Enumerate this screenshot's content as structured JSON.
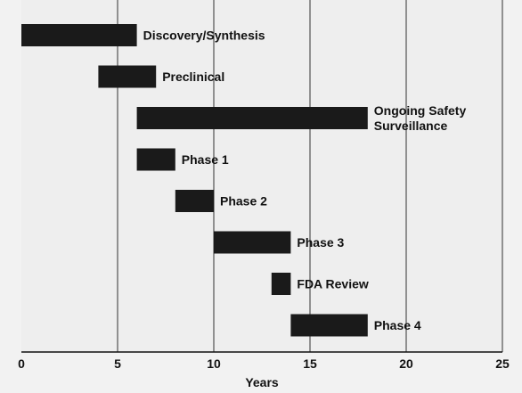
{
  "chart_data": {
    "type": "bar",
    "orientation": "horizontal-gantt",
    "xlabel": "Years",
    "ylabel": "",
    "xlim": [
      0,
      25
    ],
    "xticks": [
      0,
      5,
      10,
      15,
      20,
      25
    ],
    "xtick_labels": [
      "0",
      "5",
      "10",
      "15",
      "20",
      "25"
    ],
    "grid": "vertical",
    "legend": "none",
    "bar_color": "#1a1a1a",
    "tasks": [
      {
        "label": [
          "Discovery/Synthesis"
        ],
        "start": 0,
        "end": 6
      },
      {
        "label": [
          "Preclinical"
        ],
        "start": 4,
        "end": 7
      },
      {
        "label": [
          "Ongoing Safety",
          "Surveillance"
        ],
        "start": 6,
        "end": 18
      },
      {
        "label": [
          "Phase 1"
        ],
        "start": 6,
        "end": 8
      },
      {
        "label": [
          "Phase 2"
        ],
        "start": 8,
        "end": 10
      },
      {
        "label": [
          "Phase 3"
        ],
        "start": 10,
        "end": 14
      },
      {
        "label": [
          "FDA Review"
        ],
        "start": 13,
        "end": 14
      },
      {
        "label": [
          "Phase 4"
        ],
        "start": 14,
        "end": 18
      }
    ]
  }
}
